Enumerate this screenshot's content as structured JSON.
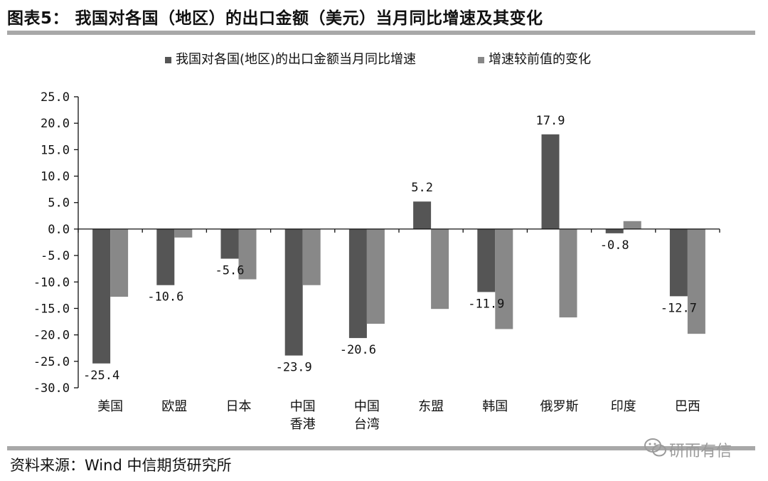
{
  "header": {
    "title": "图表5： 我国对各国（地区）的出口金额（美元）当月同比增速及其变化"
  },
  "footer": {
    "source": "资料来源：Wind 中信期货研究所",
    "watermark": "研而有信"
  },
  "chart_data": {
    "type": "bar",
    "categories": [
      [
        "美国"
      ],
      [
        "欧盟"
      ],
      [
        "日本"
      ],
      [
        "中国",
        "香港"
      ],
      [
        "中国",
        "台湾"
      ],
      [
        "东盟"
      ],
      [
        "韩国"
      ],
      [
        "俄罗斯"
      ],
      [
        "印度"
      ],
      [
        "巴西"
      ]
    ],
    "series": [
      {
        "name": "我国对各国(地区)的出口金额当月同比增速",
        "color": "#555555",
        "values": [
          -25.4,
          -10.6,
          -5.6,
          -23.9,
          -20.6,
          5.2,
          -11.9,
          17.9,
          -0.8,
          -12.7
        ],
        "labels": [
          "-25.4",
          "-10.6",
          "-5.6",
          "-23.9",
          "-20.6",
          "5.2",
          "-11.9",
          "17.9",
          "-0.8",
          "-12.7"
        ]
      },
      {
        "name": "增速较前值的变化",
        "color": "#888888",
        "values": [
          -12.8,
          -1.6,
          -9.5,
          -10.6,
          -17.9,
          -15.1,
          -18.9,
          -16.7,
          1.5,
          -19.8
        ]
      }
    ],
    "ylim": [
      -30,
      25
    ],
    "yticks": [
      "25.0",
      "20.0",
      "15.0",
      "10.0",
      "5.0",
      "0.0",
      "-5.0",
      "-10.0",
      "-15.0",
      "-20.0",
      "-25.0",
      "-30.0"
    ],
    "legend_position": "top",
    "grid": false
  }
}
